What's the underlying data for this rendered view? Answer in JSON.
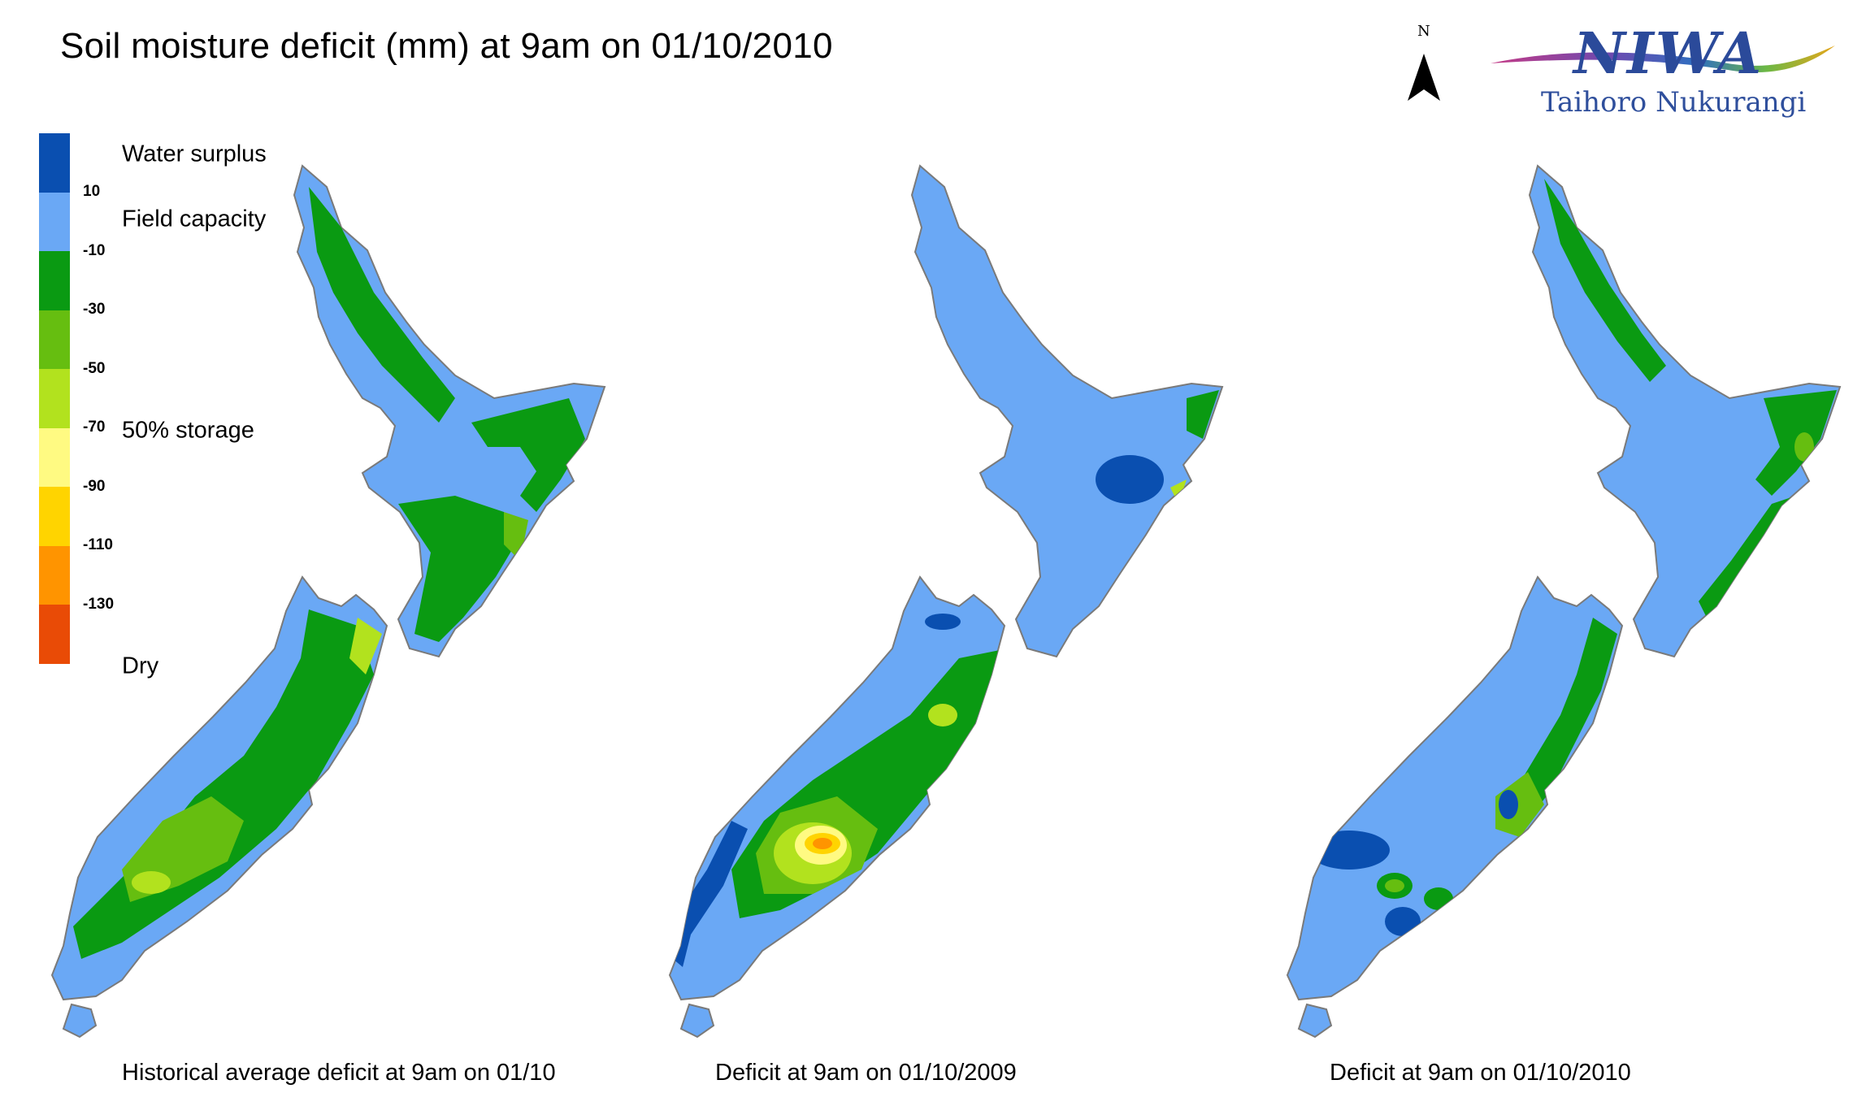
{
  "title": "Soil moisture deficit (mm) at  9am on 01/10/2010",
  "compass": {
    "letter": "N",
    "icon": "north-arrow-icon"
  },
  "logo": {
    "name": "NIWA",
    "tagline": "Taihoro Nukurangi"
  },
  "legend": {
    "colors": [
      "#0a4fb0",
      "#6aa8f5",
      "#0a9a12",
      "#66be10",
      "#b2e21e",
      "#fffa82",
      "#ffd400",
      "#ff9400",
      "#e94b06"
    ],
    "ticks": [
      "10",
      "-10",
      "-30",
      "-50",
      "-70",
      "-90",
      "-110",
      "-130"
    ],
    "labels": {
      "water_surplus": "Water surplus",
      "field_capacity": "Field capacity",
      "half_storage": "50% storage",
      "dry": "Dry"
    }
  },
  "maps": [
    {
      "caption": "Historical average deficit at  9am on 01/10"
    },
    {
      "caption": "Deficit at  9am on 01/10/2009"
    },
    {
      "caption": "Deficit at  9am on 01/10/2010"
    }
  ]
}
